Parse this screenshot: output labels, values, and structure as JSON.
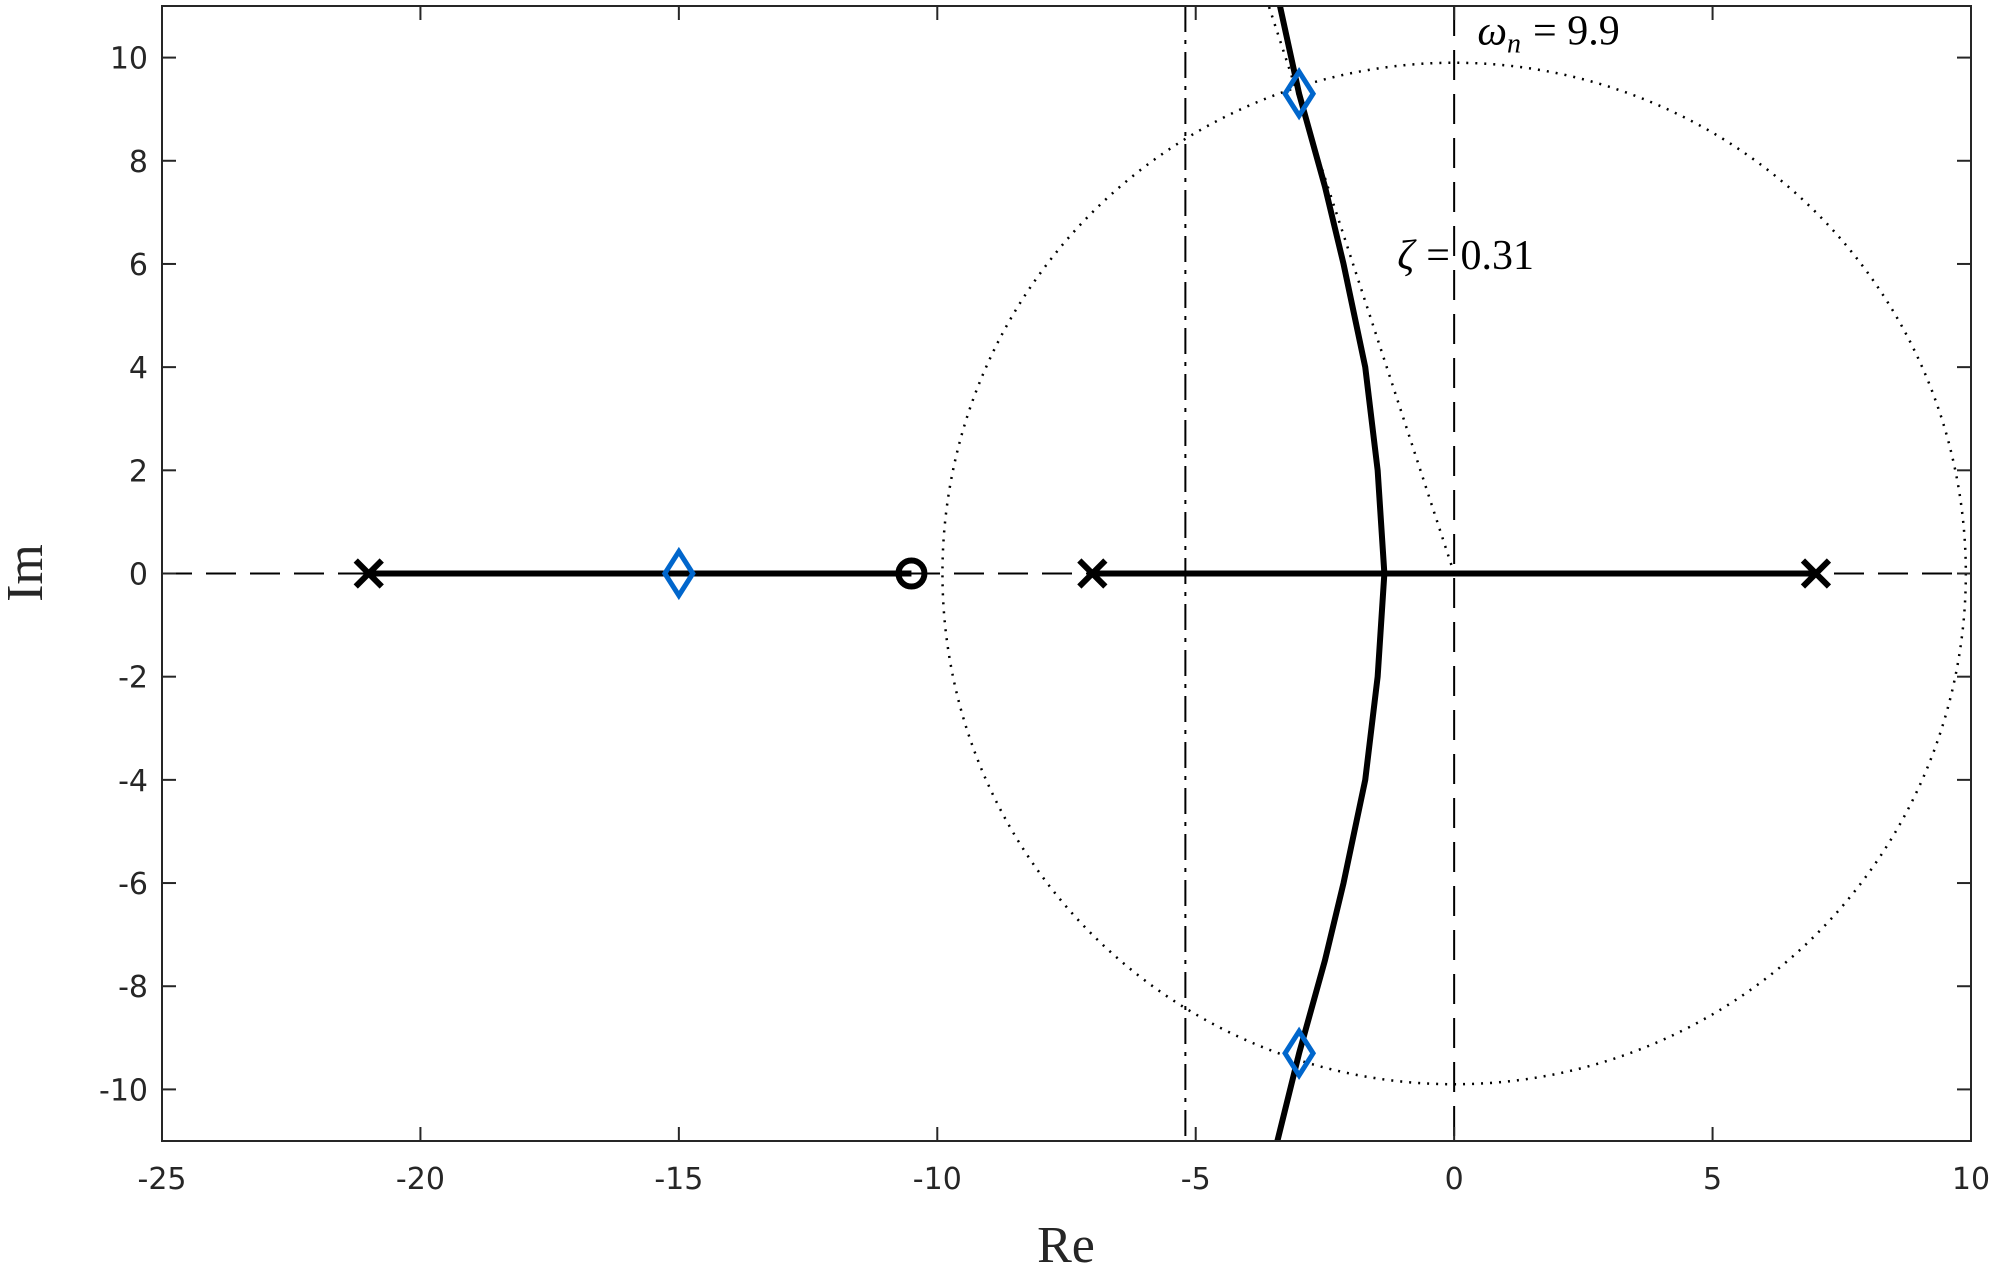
{
  "chart_data": {
    "type": "line",
    "xlabel": "Re",
    "ylabel": "Im",
    "xlim": [
      -25,
      10
    ],
    "ylim": [
      -11,
      11
    ],
    "xticks": [
      -25,
      -20,
      -15,
      -10,
      -5,
      0,
      5,
      10
    ],
    "yticks": [
      -10,
      -8,
      -6,
      -4,
      -2,
      0,
      2,
      4,
      6,
      8,
      10
    ],
    "series": [
      {
        "color": "#000000",
        "x": [
          -21,
          -10.5
        ],
        "y": [
          0,
          0
        ]
      },
      {
        "color": "#000000",
        "x": [
          -7,
          7
        ],
        "y": [
          0,
          0
        ]
      },
      {
        "color": "#000000",
        "x": [
          -3.37,
          -3.0,
          -2.5,
          -2.14,
          -1.72,
          -1.48,
          -1.35,
          -1.48,
          -1.72,
          -2.14,
          -2.5,
          -3.0,
          -3.42
        ],
        "y": [
          11,
          9.3,
          7.5,
          6,
          4,
          2,
          0,
          -2,
          -4,
          -6,
          -7.5,
          -9.3,
          -11
        ]
      },
      {
        "color": "#000000",
        "marker": "x",
        "x": [
          -21,
          -7,
          7
        ],
        "y": [
          0,
          0,
          0
        ]
      },
      {
        "color": "#000000",
        "marker": "o",
        "x": [
          -10.5
        ],
        "y": [
          0
        ]
      },
      {
        "color": "#0066cc",
        "marker": "diamond",
        "x": [
          -15,
          -3,
          -3
        ],
        "y": [
          0,
          9.3,
          -9.3
        ]
      }
    ],
    "reference_lines": [
      {
        "axis": "x",
        "value": 0,
        "style": "dashed"
      },
      {
        "axis": "y",
        "value": 0,
        "style": "dashed"
      },
      {
        "axis": "x",
        "value": -5.2,
        "style": "dashdot"
      }
    ],
    "wn_circle": {
      "radius": 9.9,
      "symbol": "ω",
      "subscript": "n",
      "text": "= 9.9"
    },
    "zeta_line": {
      "zeta": 0.31,
      "symbol": "ζ",
      "text": "= 0.31"
    }
  }
}
